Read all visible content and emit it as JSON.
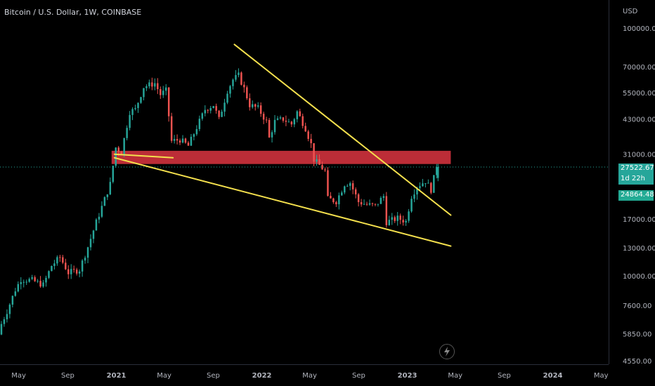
{
  "title": "Bitcoin / U.S. Dollar, 1W, COINBASE",
  "currency": "USD",
  "price_badge": "27522.67",
  "time_badge": "1d 22h",
  "open_badge": "24864.48",
  "icons": {
    "bolt": "lightning-bolt-icon"
  },
  "colors": {
    "up": "#26a69a",
    "down": "#ef5350",
    "trendline": "#f4e04d",
    "zone": "#c62f3a",
    "bg": "#000000",
    "current": "#26a69a"
  },
  "chart_data": {
    "type": "candlestick",
    "y_scale": "log",
    "ylim": [
      4400,
      130000
    ],
    "xlim": [
      "2020-03-15",
      "2024-05-20"
    ],
    "y_ticks": [
      "100000.00",
      "70000.00",
      "55000.00",
      "43000.00",
      "31000.00",
      "17000.00",
      "13000.00",
      "10000.00",
      "7600.00",
      "5850.00",
      "4550.00"
    ],
    "x_ticks": [
      {
        "label": "May",
        "date": "2020-05-01"
      },
      {
        "label": "Sep",
        "date": "2020-09-01"
      },
      {
        "label": "2021",
        "date": "2021-01-01"
      },
      {
        "label": "May",
        "date": "2021-05-01"
      },
      {
        "label": "Sep",
        "date": "2021-09-01"
      },
      {
        "label": "2022",
        "date": "2022-01-01"
      },
      {
        "label": "May",
        "date": "2022-05-01"
      },
      {
        "label": "Sep",
        "date": "2022-09-01"
      },
      {
        "label": "2023",
        "date": "2023-01-01"
      },
      {
        "label": "May",
        "date": "2023-05-01"
      },
      {
        "label": "Sep",
        "date": "2023-09-01"
      },
      {
        "label": "2024",
        "date": "2024-01-01"
      },
      {
        "label": "May",
        "date": "2024-05-01"
      }
    ],
    "price_path": [
      [
        "2020-03-15",
        5800
      ],
      [
        "2020-03-22",
        6400
      ],
      [
        "2020-04-05",
        7200
      ],
      [
        "2020-04-26",
        8800
      ],
      [
        "2020-05-10",
        9700
      ],
      [
        "2020-06-07",
        9600
      ],
      [
        "2020-07-05",
        9200
      ],
      [
        "2020-07-26",
        11000
      ],
      [
        "2020-08-16",
        11900
      ],
      [
        "2020-09-06",
        10300
      ],
      [
        "2020-10-04",
        10600
      ],
      [
        "2020-10-25",
        13100
      ],
      [
        "2020-11-15",
        16500
      ],
      [
        "2020-11-29",
        19000
      ],
      [
        "2020-12-20",
        23500
      ],
      [
        "2021-01-03",
        33000
      ],
      [
        "2021-01-17",
        31500
      ],
      [
        "2021-02-07",
        46000
      ],
      [
        "2021-02-21",
        47000
      ],
      [
        "2021-03-14",
        58000
      ],
      [
        "2021-04-11",
        60000
      ],
      [
        "2021-04-25",
        54000
      ],
      [
        "2021-05-09",
        56000
      ],
      [
        "2021-05-23",
        35000
      ],
      [
        "2021-06-13",
        35500
      ],
      [
        "2021-07-04",
        33500
      ],
      [
        "2021-07-25",
        39800
      ],
      [
        "2021-08-15",
        47000
      ],
      [
        "2021-09-05",
        49000
      ],
      [
        "2021-09-19",
        42800
      ],
      [
        "2021-10-10",
        56000
      ],
      [
        "2021-10-24",
        62000
      ],
      [
        "2021-11-07",
        64500
      ],
      [
        "2021-11-21",
        57000
      ],
      [
        "2021-12-05",
        49000
      ],
      [
        "2021-12-26",
        47500
      ],
      [
        "2022-01-16",
        42000
      ],
      [
        "2022-01-23",
        36000
      ],
      [
        "2022-02-06",
        42000
      ],
      [
        "2022-02-27",
        43000
      ],
      [
        "2022-03-20",
        41000
      ],
      [
        "2022-04-03",
        46000
      ],
      [
        "2022-04-24",
        39500
      ],
      [
        "2022-05-08",
        34000
      ],
      [
        "2022-05-15",
        29500
      ],
      [
        "2022-06-12",
        26500
      ],
      [
        "2022-06-19",
        20500
      ],
      [
        "2022-07-10",
        20000
      ],
      [
        "2022-07-31",
        23500
      ],
      [
        "2022-08-14",
        23800
      ],
      [
        "2022-09-04",
        19900
      ],
      [
        "2022-09-25",
        19400
      ],
      [
        "2022-10-16",
        19200
      ],
      [
        "2022-11-06",
        21000
      ],
      [
        "2022-11-13",
        16500
      ],
      [
        "2022-12-11",
        17100
      ],
      [
        "2023-01-01",
        16600
      ],
      [
        "2023-01-15",
        21000
      ],
      [
        "2023-01-29",
        23000
      ],
      [
        "2023-02-19",
        24200
      ],
      [
        "2023-03-05",
        22300
      ],
      [
        "2023-03-12",
        24800
      ],
      [
        "2023-03-19",
        27500
      ]
    ],
    "last": {
      "date": "2023-03-19",
      "open": 24864.48,
      "close": 27522.67
    },
    "support_zone": {
      "from": "2020-12-20",
      "to": "2023-04-20",
      "low": 28300,
      "high": 32000
    },
    "trendlines": [
      {
        "from": [
          "2021-10-24",
          86000
        ],
        "to": [
          "2023-04-20",
          17600
        ]
      },
      {
        "from": [
          "2020-12-27",
          30000
        ],
        "to": [
          "2023-04-20",
          13200
        ]
      },
      {
        "from": [
          "2020-12-27",
          31000
        ],
        "to": [
          "2021-05-23",
          30000
        ]
      }
    ],
    "current_line": 27522.67
  }
}
